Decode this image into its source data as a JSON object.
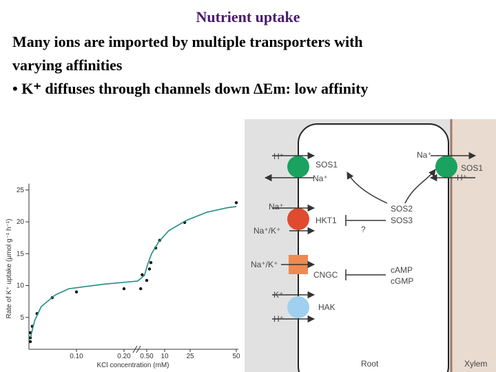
{
  "header": {
    "title": "Nutrient uptake",
    "lines": [
      "Many ions are imported by multiple transporters with",
      "varying affinities",
      "• K⁺ diffuses through channels down ∆Em: low affinity"
    ]
  },
  "chart_data": {
    "type": "scatter",
    "y_label": "Rate of K⁺ uptake (μmol g⁻¹ h⁻¹)",
    "x_label": "KCl concentration (mM)",
    "xlim": [
      0,
      50
    ],
    "xticks": [
      {
        "value": 0.1,
        "label": "0.10"
      },
      {
        "value": 0.2,
        "label": "0.20"
      },
      {
        "value": 0.5,
        "label": "0.50"
      },
      10,
      25,
      50
    ],
    "ylim": [
      0,
      26
    ],
    "yticks": [
      5,
      10,
      15,
      20,
      25
    ],
    "series": [
      {
        "type": "scatter",
        "color": "#111111",
        "x": [
          0.003,
          0.003,
          0.003,
          0.007,
          0.017,
          0.049,
          0.1,
          0.2,
          0.42,
          0.44,
          0.5,
          1.96,
          2.7,
          5.25,
          7.4,
          21.8,
          50
        ],
        "values": [
          2.6,
          1.8,
          1.2,
          3.6,
          5.6,
          8.1,
          9.0,
          9.5,
          9.5,
          11.7,
          10.8,
          12.6,
          13.6,
          15.9,
          17.1,
          19.9,
          23
        ]
      },
      {
        "type": "line",
        "color": "#1f8a85",
        "x": [
          0.003,
          0.012,
          0.026,
          0.055,
          0.084,
          0.157,
          0.38,
          0.47,
          0.87,
          3.06,
          6.7,
          12.4,
          22.6,
          34,
          45.1,
          50
        ],
        "values": [
          1.8,
          4.5,
          6.7,
          8.5,
          9.5,
          10.2,
          10.7,
          11.6,
          13.2,
          15.0,
          16.8,
          18.6,
          20.2,
          21.5,
          22.2,
          22.4
        ]
      }
    ]
  },
  "diagram": {
    "labels": [
      "H⁺",
      "Na⁺",
      "SOS1",
      "Na⁺",
      "HKT1",
      "Na⁺/K⁺",
      "Na⁺/K⁺",
      "CNGC",
      "K⁺",
      "HAK",
      "H⁺",
      "Na⁺",
      "SOS1",
      "H⁺",
      "SOS2",
      "SOS3",
      "?",
      "cAMP",
      "cGMP",
      "Root",
      "Xylem"
    ]
  }
}
